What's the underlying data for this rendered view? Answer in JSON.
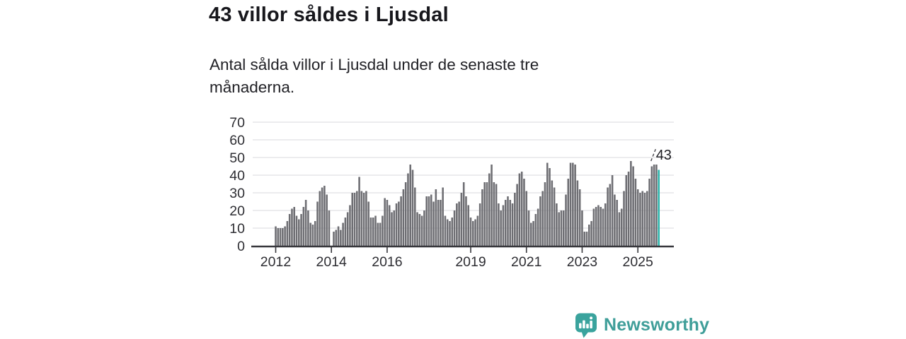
{
  "header": {
    "title": "43 villor såldes i Ljusdal",
    "subtitle": "Antal sålda villor i Ljusdal under de senaste tre månaderna."
  },
  "footer": {
    "brand": "Newsworthy",
    "brand_color": "#3f9e99",
    "logo_icon": "speech-bubble-bar-chart-icon",
    "logo_color": "#3aa39d"
  },
  "chart_data": {
    "type": "bar",
    "title": "43 villor såldes i Ljusdal",
    "subtitle": "Antal sålda villor i Ljusdal under de senaste tre månaderna.",
    "xlabel": "",
    "ylabel": "",
    "x_unit": "month",
    "x_start": "2012-01",
    "x_end": "2025-10",
    "ylim": [
      0,
      70
    ],
    "y_ticks": [
      0,
      10,
      20,
      30,
      40,
      50,
      60,
      70
    ],
    "x_tick_labels": [
      "2012",
      "2014",
      "2016",
      "2019",
      "2021",
      "2023",
      "2025"
    ],
    "x_tick_years": [
      2012,
      2014,
      2016,
      2019,
      2021,
      2023,
      2025
    ],
    "grid": "horizontal",
    "legend": "none",
    "bar_color": "#6e6e73",
    "highlight_color": "#2bb3aa",
    "highlight_index_from_end": 1,
    "annotation": {
      "text": "43",
      "target": "2025-10"
    },
    "grid_color": "#e1e1e4",
    "axis_color": "#37373c",
    "tick_text_color": "#2e2e33",
    "values": [
      11,
      10,
      10,
      10,
      11,
      14,
      18,
      21,
      22,
      17,
      15,
      18,
      22,
      26,
      20,
      13,
      12,
      14,
      25,
      31,
      33,
      34,
      29,
      20,
      0,
      8,
      9,
      11,
      9,
      13,
      16,
      19,
      23,
      30,
      30,
      31,
      39,
      31,
      30,
      31,
      25,
      16,
      16,
      17,
      13,
      13,
      17,
      27,
      26,
      23,
      19,
      20,
      24,
      25,
      28,
      32,
      36,
      41,
      46,
      43,
      33,
      19,
      18,
      17,
      20,
      28,
      28,
      29,
      25,
      32,
      26,
      26,
      33,
      17,
      15,
      14,
      16,
      20,
      24,
      25,
      30,
      36,
      28,
      23,
      16,
      14,
      15,
      17,
      24,
      32,
      36,
      36,
      41,
      46,
      36,
      35,
      24,
      20,
      23,
      26,
      28,
      26,
      24,
      30,
      35,
      41,
      42,
      38,
      31,
      20,
      13,
      14,
      18,
      21,
      28,
      31,
      36,
      47,
      44,
      37,
      33,
      24,
      19,
      20,
      20,
      29,
      38,
      47,
      47,
      46,
      37,
      32,
      20,
      8,
      8,
      12,
      14,
      21,
      22,
      23,
      22,
      21,
      24,
      33,
      35,
      40,
      29,
      26,
      19,
      21,
      31,
      40,
      42,
      48,
      45,
      38,
      32,
      30,
      31,
      30,
      31,
      38,
      45,
      46,
      46,
      43
    ]
  }
}
